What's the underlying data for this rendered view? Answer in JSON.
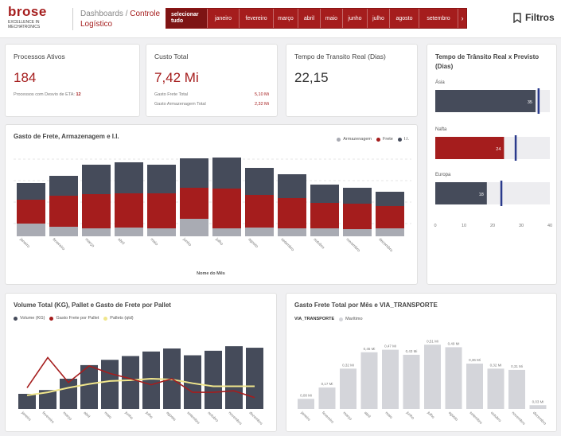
{
  "header": {
    "logo": {
      "name": "brose",
      "tagline": "EXCELLENCE IN MECHATRONICS"
    },
    "breadcrumb": {
      "parent": "Dashboards",
      "separator": " / ",
      "current": "Controle Logístico"
    },
    "months": [
      "selecionar tudo",
      "janeiro",
      "fevereiro",
      "março",
      "abril",
      "maio",
      "junho",
      "julho",
      "agosto",
      "setembro",
      "›"
    ],
    "filtros": "Filtros"
  },
  "kpi": {
    "processos": {
      "title": "Processos Ativos",
      "value": "184",
      "sub_label": "Processos com Desvio de ETA:",
      "sub_value": "12"
    },
    "custo": {
      "title": "Custo Total",
      "value": "7,42 Mi",
      "rows": [
        {
          "label": "Gasto Frete Total",
          "value": "5,10 Mi"
        },
        {
          "label": "Gasto Armazenagem Total",
          "value": "2,32 Mi"
        }
      ]
    },
    "transito": {
      "title": "Tempo de Transito Real (Dias)",
      "value": "22,15"
    }
  },
  "colors": {
    "accent": "#a51d1d",
    "dark": "#454b5a",
    "grey": "#a9abb3",
    "light": "#d4d5da",
    "target": "#2a3a8c",
    "pallet": "#f0e68c"
  },
  "transit": {
    "title": "Tempo de Trânsito Real x Previsto (Dias)",
    "axis_ticks": [
      "0",
      "10",
      "20",
      "30",
      "40"
    ],
    "chart_data": {
      "type": "bar",
      "orientation": "horizontal",
      "categories": [
        "Ásia",
        "Nafta",
        "Europa"
      ],
      "values": [
        35,
        24,
        18
      ],
      "targets": [
        36,
        28,
        23
      ],
      "xlim": [
        0,
        40
      ]
    }
  },
  "gasto": {
    "title": "Gasto de Frete, Armazenagem e I.I.",
    "xlabel": "Nome do Mês",
    "legend": [
      "Armazenagem",
      "Frete",
      "I.I."
    ],
    "chart_data": {
      "type": "bar",
      "stacked": true,
      "categories": [
        "janeiro",
        "fevereiro",
        "março",
        "abril",
        "maio",
        "junho",
        "julho",
        "agosto",
        "setembro",
        "outubro",
        "novembro",
        "dezembro"
      ],
      "series": [
        {
          "name": "Armazenagem",
          "values": [
            16,
            12,
            10,
            11,
            10,
            22,
            10,
            11,
            10,
            10,
            9,
            10
          ]
        },
        {
          "name": "Frete",
          "values": [
            30,
            39,
            43,
            43,
            44,
            39,
            50,
            41,
            38,
            32,
            32,
            28
          ]
        },
        {
          "name": "I.I.",
          "values": [
            21,
            25,
            37,
            39,
            36,
            37,
            39,
            34,
            30,
            23,
            20,
            18
          ]
        }
      ],
      "ylim": [
        0,
        100
      ]
    }
  },
  "volume": {
    "title": "Volume Total (KG), Pallet e Gasto de Frete por Pallet",
    "legend": [
      "Volume (KG)",
      "Gasto Frete por Pallet",
      "Pallets (qtd)"
    ],
    "chart_data": {
      "type": "bar",
      "categories": [
        "janeiro",
        "fevereiro",
        "março",
        "abril",
        "maio",
        "junho",
        "julho",
        "agosto",
        "setembro",
        "outubro",
        "novembro",
        "dezembro"
      ],
      "series": [
        {
          "name": "Volume (KG)",
          "type": "bar",
          "values": [
            20,
            25,
            40,
            58,
            65,
            70,
            76,
            80,
            71,
            77,
            83,
            81
          ]
        },
        {
          "name": "Gasto Frete por Pallet",
          "type": "line",
          "values": [
            28,
            68,
            35,
            57,
            47,
            40,
            32,
            40,
            22,
            22,
            24,
            15
          ]
        },
        {
          "name": "Pallets (qtd)",
          "type": "line",
          "values": [
            18,
            22,
            28,
            33,
            37,
            38,
            40,
            39,
            34,
            30,
            30,
            30
          ]
        }
      ],
      "ylim": [
        0,
        100
      ]
    }
  },
  "via": {
    "title": "Gasto Frete Total por Mês e VIA_TRANSPORTE",
    "legend_title": "VIA_TRANSPORTE",
    "legend": [
      "Marítimo"
    ],
    "chart_data": {
      "type": "bar",
      "categories": [
        "janeiro",
        "fevereiro",
        "março",
        "abril",
        "maio",
        "junho",
        "julho",
        "agosto",
        "setembro",
        "outubro",
        "novembro",
        "dezembro"
      ],
      "series": [
        {
          "name": "Marítimo",
          "values": [
            0.08,
            0.17,
            0.32,
            0.45,
            0.47,
            0.43,
            0.51,
            0.49,
            0.36,
            0.32,
            0.31,
            0.03
          ]
        }
      ],
      "labels": [
        "0,08 Mi",
        "0,17 Mi",
        "0,32 Mi",
        "0,45 Mi",
        "0,47 Mi",
        "0,43 Mi",
        "0,51 Mi",
        "0,49 Mi",
        "0,36 Mi",
        "0,32 Mi",
        "0,31 Mi",
        "0,03 Mi"
      ],
      "ylim": [
        0,
        0.6
      ]
    }
  }
}
